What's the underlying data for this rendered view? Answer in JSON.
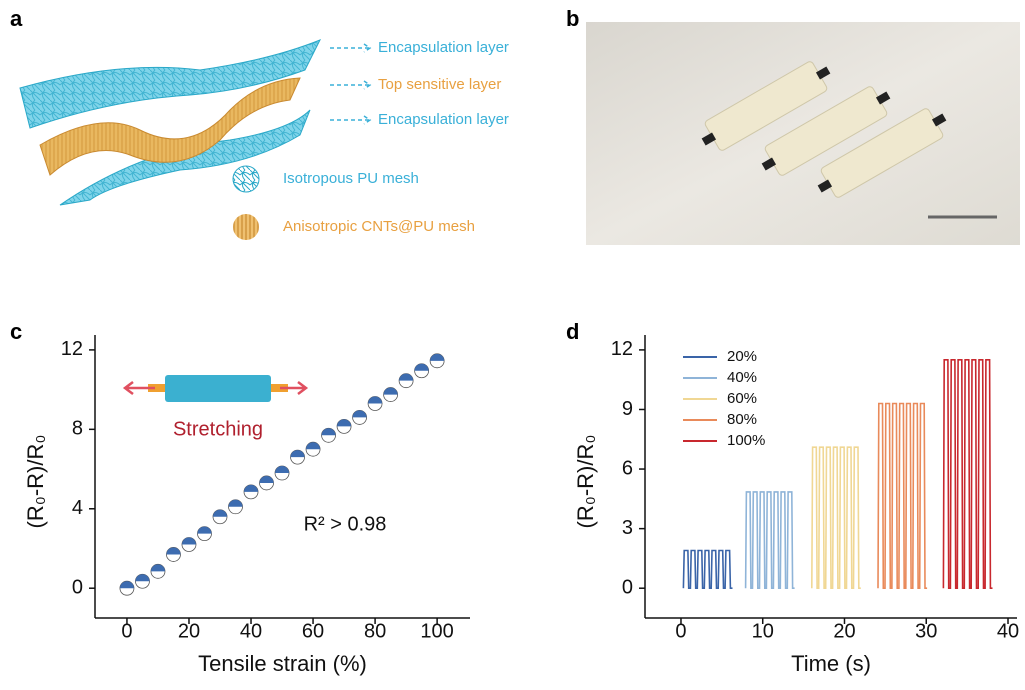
{
  "panel_labels": [
    "a",
    "b",
    "c",
    "d"
  ],
  "illustration": {
    "layer_labels": [
      "Encapsulation layer",
      "Top sensitive layer",
      "Encapsulation layer"
    ],
    "legend": [
      "Isotropous PU mesh",
      "Anisotropic CNTs@PU mesh"
    ]
  },
  "chart_data": [
    {
      "type": "scatter",
      "x_label": "Tensile strain (%)",
      "y_label": "(R₀-R)/R₀",
      "x": [
        0,
        5,
        10,
        15,
        20,
        25,
        30,
        35,
        40,
        45,
        50,
        55,
        60,
        65,
        70,
        75,
        80,
        85,
        90,
        95,
        100
      ],
      "values": [
        0,
        0.35,
        0.85,
        1.7,
        2.2,
        2.75,
        3.6,
        4.1,
        4.85,
        5.3,
        5.8,
        6.6,
        7.0,
        7.7,
        8.15,
        8.6,
        9.3,
        9.75,
        10.45,
        10.95,
        11.45
      ],
      "color": "#3d6cb0",
      "xlim": [
        -10.3,
        110.6
      ],
      "xticks": [
        0,
        20,
        40,
        60,
        80,
        100
      ],
      "ylim": [
        -1.5,
        12.75
      ],
      "yticks": [
        0,
        4,
        8,
        12
      ],
      "annotations": [
        {
          "text": "Stretching",
          "color": "#b0202e"
        },
        {
          "text": "R² > 0.98",
          "color": "#111111"
        }
      ]
    },
    {
      "type": "line",
      "x_label": "Time (s)",
      "y_label": "(R₀-R)/R₀",
      "xlim": [
        -4.4,
        41.1
      ],
      "xticks": [
        0,
        10,
        20,
        30,
        40
      ],
      "ylim": [
        -1.5,
        12.75
      ],
      "yticks": [
        0,
        3,
        6,
        9,
        12
      ],
      "legend": "upper left",
      "series": [
        {
          "name": "20%",
          "color": "#3a64a8",
          "x": [
            0.3,
            0.4,
            0.85,
            0.95,
            1.15,
            1.25,
            1.7,
            1.8,
            2.0,
            2.1,
            2.55,
            2.65,
            2.85,
            2.95,
            3.4,
            3.5,
            3.7,
            3.8,
            4.25,
            4.35,
            4.55,
            4.65,
            5.1,
            5.2,
            5.4,
            5.5,
            5.95,
            6.05,
            6.3
          ],
          "values": [
            0,
            1.9,
            1.9,
            0,
            0,
            1.9,
            1.9,
            0,
            0,
            1.9,
            1.9,
            0,
            0,
            1.9,
            1.9,
            0,
            0,
            1.9,
            1.9,
            0,
            0,
            1.9,
            1.9,
            0,
            0,
            1.9,
            1.9,
            0,
            0
          ]
        },
        {
          "name": "40%",
          "color": "#8fb4d8",
          "x": [
            7.9,
            8.0,
            8.45,
            8.55,
            8.75,
            8.85,
            9.3,
            9.4,
            9.6,
            9.7,
            10.15,
            10.25,
            10.45,
            10.55,
            11.0,
            11.1,
            11.3,
            11.4,
            11.85,
            11.95,
            12.15,
            12.25,
            12.7,
            12.8,
            13.0,
            13.1,
            13.55,
            13.65,
            13.9
          ],
          "values": [
            0,
            4.85,
            4.85,
            0,
            0,
            4.85,
            4.85,
            0,
            0,
            4.85,
            4.85,
            0,
            0,
            4.85,
            4.85,
            0,
            0,
            4.85,
            4.85,
            0,
            0,
            4.85,
            4.85,
            0,
            0,
            4.85,
            4.85,
            0,
            0
          ]
        },
        {
          "name": "60%",
          "color": "#f0d794",
          "x": [
            16.0,
            16.1,
            16.55,
            16.65,
            16.85,
            16.95,
            17.4,
            17.5,
            17.7,
            17.8,
            18.25,
            18.35,
            18.55,
            18.65,
            19.1,
            19.2,
            19.4,
            19.5,
            19.95,
            20.05,
            20.25,
            20.35,
            20.8,
            20.9,
            21.1,
            21.2,
            21.65,
            21.75,
            22.0
          ],
          "values": [
            0,
            7.1,
            7.1,
            0,
            0,
            7.1,
            7.1,
            0,
            0,
            7.1,
            7.1,
            0,
            0,
            7.1,
            7.1,
            0,
            0,
            7.1,
            7.1,
            0,
            0,
            7.1,
            7.1,
            0,
            0,
            7.1,
            7.1,
            0,
            0
          ]
        },
        {
          "name": "80%",
          "color": "#e98a5a",
          "x": [
            24.1,
            24.2,
            24.65,
            24.75,
            24.95,
            25.05,
            25.5,
            25.6,
            25.8,
            25.9,
            26.35,
            26.45,
            26.65,
            26.75,
            27.2,
            27.3,
            27.5,
            27.6,
            28.05,
            28.15,
            28.35,
            28.45,
            28.9,
            29.0,
            29.2,
            29.3,
            29.75,
            29.85,
            30.1
          ],
          "values": [
            0,
            9.3,
            9.3,
            0,
            0,
            9.3,
            9.3,
            0,
            0,
            9.3,
            9.3,
            0,
            0,
            9.3,
            9.3,
            0,
            0,
            9.3,
            9.3,
            0,
            0,
            9.3,
            9.3,
            0,
            0,
            9.3,
            9.3,
            0,
            0
          ]
        },
        {
          "name": "100%",
          "color": "#c8282e",
          "x": [
            32.1,
            32.2,
            32.65,
            32.75,
            32.95,
            33.05,
            33.5,
            33.6,
            33.8,
            33.9,
            34.35,
            34.45,
            34.65,
            34.75,
            35.2,
            35.3,
            35.5,
            35.6,
            36.05,
            36.15,
            36.35,
            36.45,
            36.9,
            37.0,
            37.2,
            37.3,
            37.75,
            37.85,
            38.1
          ],
          "values": [
            0,
            11.5,
            11.5,
            0,
            0,
            11.5,
            11.5,
            0,
            0,
            11.5,
            11.5,
            0,
            0,
            11.5,
            11.5,
            0,
            0,
            11.5,
            11.5,
            0,
            0,
            11.5,
            11.5,
            0,
            0,
            11.5,
            11.5,
            0,
            0
          ]
        }
      ]
    }
  ]
}
